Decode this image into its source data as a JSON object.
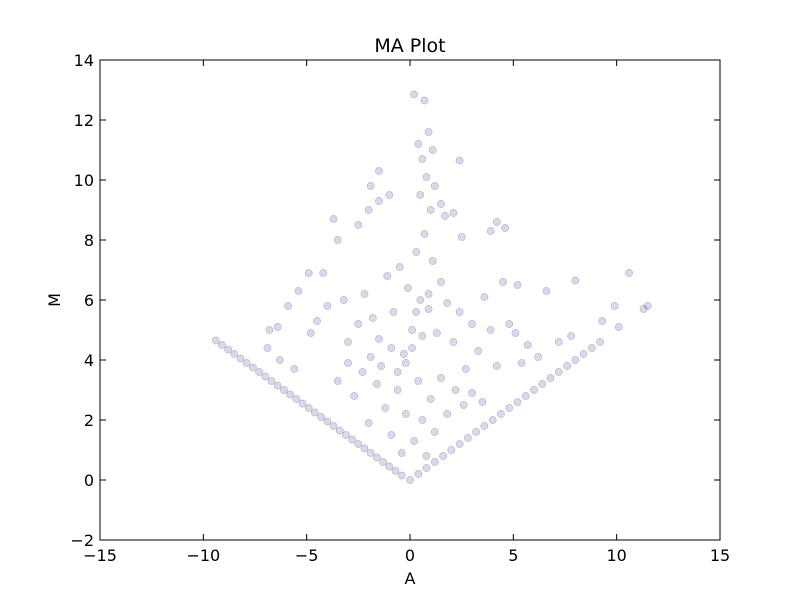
{
  "chart_data": {
    "type": "scatter",
    "title": "MA Plot",
    "xlabel": "A",
    "ylabel": "M",
    "xlim": [
      -15,
      15
    ],
    "ylim": [
      -2,
      14
    ],
    "xticks": [
      -15,
      -10,
      -5,
      0,
      5,
      10,
      15
    ],
    "yticks": [
      -2,
      0,
      2,
      4,
      6,
      8,
      10,
      12,
      14
    ],
    "xtick_labels": [
      "−15",
      "−10",
      "−5",
      "0",
      "5",
      "10",
      "15"
    ],
    "ytick_labels": [
      "−2",
      "0",
      "2",
      "4",
      "6",
      "8",
      "10",
      "12",
      "14"
    ],
    "grid": false,
    "legend": "none",
    "marker_color": "#00008b",
    "marker_alpha": 0.15,
    "series": [
      {
        "points": [
          [
            -9.4,
            4.65
          ],
          [
            -9.1,
            4.5
          ],
          [
            -8.8,
            4.35
          ],
          [
            -8.5,
            4.2
          ],
          [
            -8.2,
            4.05
          ],
          [
            -7.9,
            3.9
          ],
          [
            -7.6,
            3.75
          ],
          [
            -7.3,
            3.6
          ],
          [
            -7.0,
            3.45
          ],
          [
            -6.7,
            3.3
          ],
          [
            -6.4,
            3.15
          ],
          [
            -6.1,
            3.0
          ],
          [
            -5.8,
            2.85
          ],
          [
            -5.5,
            2.7
          ],
          [
            -5.2,
            2.55
          ],
          [
            -4.9,
            2.4
          ],
          [
            -4.6,
            2.25
          ],
          [
            -4.3,
            2.1
          ],
          [
            -4.0,
            1.95
          ],
          [
            -3.7,
            1.8
          ],
          [
            -3.4,
            1.65
          ],
          [
            -3.1,
            1.5
          ],
          [
            -2.8,
            1.35
          ],
          [
            -2.5,
            1.2
          ],
          [
            -2.2,
            1.05
          ],
          [
            -1.9,
            0.9
          ],
          [
            -1.6,
            0.75
          ],
          [
            -1.3,
            0.6
          ],
          [
            -1.0,
            0.45
          ],
          [
            -0.7,
            0.3
          ],
          [
            -0.4,
            0.15
          ],
          [
            0.0,
            0.0
          ],
          [
            0.4,
            0.2
          ],
          [
            0.8,
            0.4
          ],
          [
            1.2,
            0.6
          ],
          [
            1.6,
            0.8
          ],
          [
            2.0,
            1.0
          ],
          [
            2.4,
            1.2
          ],
          [
            2.8,
            1.4
          ],
          [
            3.2,
            1.6
          ],
          [
            3.6,
            1.8
          ],
          [
            4.0,
            2.0
          ],
          [
            4.4,
            2.2
          ],
          [
            4.8,
            2.4
          ],
          [
            5.2,
            2.6
          ],
          [
            5.6,
            2.8
          ],
          [
            6.0,
            3.0
          ],
          [
            6.4,
            3.2
          ],
          [
            6.8,
            3.4
          ],
          [
            7.2,
            3.6
          ],
          [
            7.6,
            3.8
          ],
          [
            8.0,
            4.0
          ],
          [
            8.4,
            4.2
          ],
          [
            8.8,
            4.4
          ],
          [
            9.2,
            4.6
          ],
          [
            10.1,
            5.1
          ],
          [
            11.5,
            5.8
          ],
          [
            11.3,
            5.7
          ],
          [
            10.6,
            6.9
          ],
          [
            9.9,
            5.8
          ],
          [
            9.3,
            5.3
          ],
          [
            8.0,
            6.65
          ],
          [
            7.8,
            4.8
          ],
          [
            6.6,
            6.3
          ],
          [
            5.2,
            6.5
          ],
          [
            4.2,
            8.6
          ],
          [
            4.6,
            8.4
          ],
          [
            3.9,
            8.3
          ],
          [
            2.4,
            10.65
          ],
          [
            0.2,
            12.85
          ],
          [
            0.7,
            12.65
          ],
          [
            0.4,
            11.2
          ],
          [
            0.9,
            11.6
          ],
          [
            1.1,
            11.0
          ],
          [
            0.6,
            10.7
          ],
          [
            0.8,
            10.1
          ],
          [
            1.2,
            9.8
          ],
          [
            0.5,
            9.5
          ],
          [
            1.0,
            9.0
          ],
          [
            1.5,
            9.2
          ],
          [
            1.7,
            8.8
          ],
          [
            2.1,
            8.9
          ],
          [
            2.5,
            8.1
          ],
          [
            -1.5,
            10.3
          ],
          [
            -1.0,
            9.5
          ],
          [
            -1.9,
            9.8
          ],
          [
            -1.5,
            9.3
          ],
          [
            -2.0,
            9.0
          ],
          [
            -2.5,
            8.5
          ],
          [
            -3.7,
            8.7
          ],
          [
            -3.5,
            8.0
          ],
          [
            -4.2,
            6.9
          ],
          [
            -4.9,
            6.9
          ],
          [
            -5.4,
            6.3
          ],
          [
            -5.9,
            5.8
          ],
          [
            -6.4,
            5.1
          ],
          [
            -6.8,
            5.0
          ],
          [
            -6.9,
            4.4
          ],
          [
            -6.3,
            4.0
          ],
          [
            -5.6,
            3.7
          ],
          [
            -4.8,
            4.9
          ],
          [
            -4.5,
            5.3
          ],
          [
            -4.0,
            5.8
          ],
          [
            -3.2,
            6.0
          ],
          [
            -3.0,
            4.6
          ],
          [
            -2.5,
            5.2
          ],
          [
            -2.2,
            6.2
          ],
          [
            -1.8,
            5.4
          ],
          [
            -1.5,
            4.7
          ],
          [
            -1.1,
            6.8
          ],
          [
            -0.8,
            5.6
          ],
          [
            -0.5,
            7.1
          ],
          [
            -0.3,
            4.2
          ],
          [
            -0.1,
            6.4
          ],
          [
            0.1,
            5.0
          ],
          [
            0.3,
            7.6
          ],
          [
            0.5,
            6.0
          ],
          [
            0.7,
            8.2
          ],
          [
            0.9,
            5.7
          ],
          [
            1.1,
            7.3
          ],
          [
            1.3,
            4.9
          ],
          [
            1.5,
            6.6
          ],
          [
            1.8,
            5.9
          ],
          [
            2.1,
            4.6
          ],
          [
            2.4,
            5.6
          ],
          [
            2.7,
            3.7
          ],
          [
            3.0,
            5.2
          ],
          [
            3.3,
            4.3
          ],
          [
            3.6,
            6.1
          ],
          [
            3.9,
            5.0
          ],
          [
            4.2,
            3.8
          ],
          [
            4.5,
            6.6
          ],
          [
            4.8,
            5.2
          ],
          [
            5.1,
            4.9
          ],
          [
            5.4,
            3.9
          ],
          [
            5.7,
            4.5
          ],
          [
            6.2,
            4.1
          ],
          [
            7.2,
            4.6
          ],
          [
            -2.7,
            2.8
          ],
          [
            -2.0,
            1.9
          ],
          [
            -1.6,
            3.2
          ],
          [
            -1.2,
            2.4
          ],
          [
            -0.9,
            1.5
          ],
          [
            -0.6,
            3.0
          ],
          [
            -0.4,
            0.9
          ],
          [
            -0.2,
            2.2
          ],
          [
            0.2,
            1.3
          ],
          [
            0.4,
            3.3
          ],
          [
            0.6,
            2.0
          ],
          [
            0.8,
            0.8
          ],
          [
            1.0,
            2.7
          ],
          [
            1.2,
            1.6
          ],
          [
            1.5,
            3.4
          ],
          [
            1.8,
            2.2
          ],
          [
            2.2,
            3.0
          ],
          [
            2.6,
            2.5
          ],
          [
            3.0,
            2.9
          ],
          [
            3.5,
            2.6
          ],
          [
            -3.5,
            3.3
          ],
          [
            -3.0,
            3.9
          ],
          [
            -2.3,
            3.6
          ],
          [
            -1.9,
            4.1
          ],
          [
            -1.4,
            3.8
          ],
          [
            -0.9,
            4.4
          ],
          [
            -0.6,
            3.6
          ],
          [
            -0.2,
            3.9
          ],
          [
            0.1,
            4.4
          ],
          [
            0.3,
            5.6
          ],
          [
            0.6,
            4.8
          ],
          [
            0.9,
            6.2
          ]
        ]
      }
    ]
  }
}
